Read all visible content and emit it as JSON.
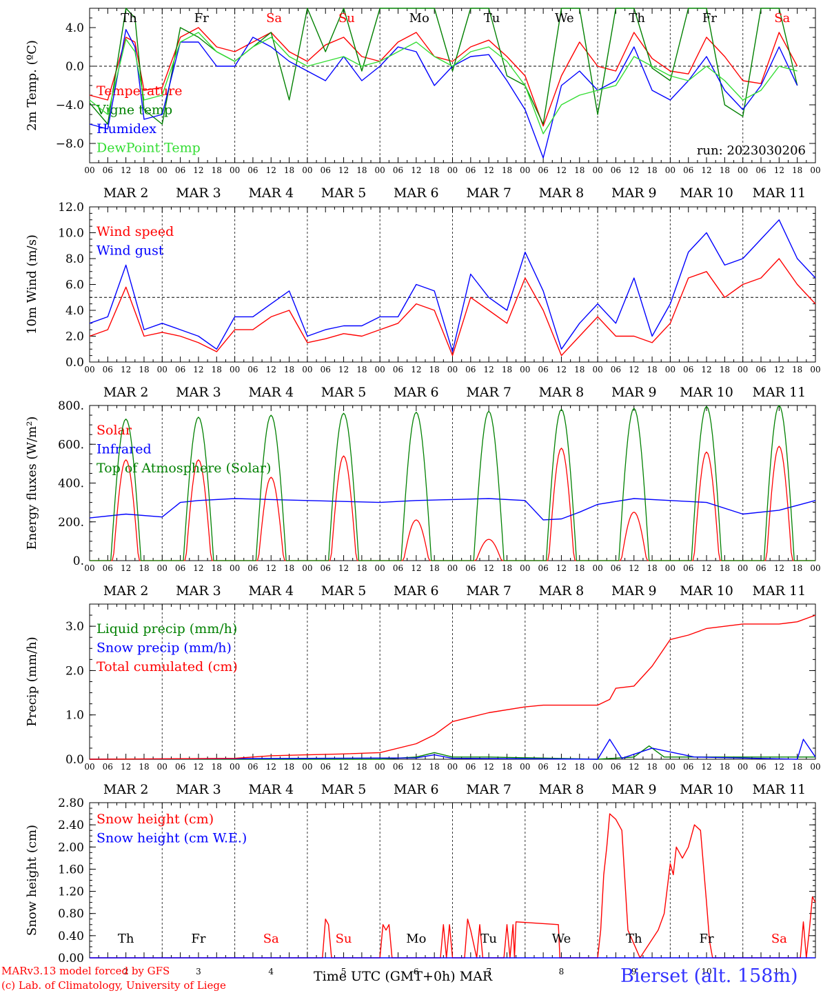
{
  "footer": {
    "model_line": "MARv3.13 model forced by GFS",
    "credit_line": "(c) Lab. of Climatology, University of Liege",
    "xaxis_title": "Time UTC (GMT+0h)",
    "xaxis_month": "MAR",
    "station": "Bierset (alt. 158m)"
  },
  "colors": {
    "red": "#ff0000",
    "blue": "#0000ff",
    "green": "#008000",
    "lightgreen": "#33dd33",
    "station": "#3333ff"
  },
  "time_axis": {
    "hour_ticks": [
      "00",
      "06",
      "12",
      "18"
    ],
    "last_tick": "00",
    "date_labels": [
      "MAR  2",
      "MAR  3",
      "MAR  4",
      "MAR  5",
      "MAR  6",
      "MAR  7",
      "MAR  8",
      "MAR  9",
      "MAR 10",
      "MAR 11"
    ],
    "day_names": [
      "Th",
      "Fr",
      "Sa",
      "Su",
      "Mo",
      "Tu",
      "We",
      "Th",
      "Fr",
      "Sa"
    ],
    "day_colors": [
      "#000000",
      "#000000",
      "#ff0000",
      "#ff0000",
      "#000000",
      "#000000",
      "#000000",
      "#000000",
      "#000000",
      "#ff0000"
    ],
    "bottom_day_numbers": [
      "2",
      "3",
      "4",
      "5",
      "6",
      "7",
      "8",
      "9",
      "10",
      "11"
    ]
  },
  "chart_data": [
    {
      "type": "line",
      "ylabel": "2m Temp. (ºC)",
      "ylim": [
        -10,
        6
      ],
      "yticks": [
        4,
        0,
        -4,
        -8
      ],
      "ytick_labels": [
        "4.0",
        "0.0",
        "−4.0",
        "−8.0"
      ],
      "reference_line": 0,
      "annotation": "run: 2023030206",
      "x_unit": "hours since MAR 2 00 UTC",
      "series": [
        {
          "name": "Temperature",
          "color": "#ff0000",
          "x": [
            0,
            6,
            12,
            15,
            18,
            24,
            30,
            36,
            42,
            48,
            54,
            60,
            66,
            72,
            78,
            84,
            90,
            96,
            102,
            108,
            114,
            120,
            126,
            132,
            138,
            144,
            150,
            156,
            162,
            168,
            174,
            180,
            186,
            192,
            198,
            204,
            210,
            216,
            222,
            228,
            234
          ],
          "y": [
            -3.0,
            -3.5,
            3.0,
            2.5,
            -2.5,
            -2.2,
            3.0,
            4.0,
            2.0,
            1.5,
            2.5,
            3.5,
            1.5,
            0.5,
            2.2,
            3.0,
            1.0,
            0.5,
            2.5,
            3.5,
            1.0,
            0.5,
            2.0,
            2.7,
            1.0,
            -1.0,
            -6.2,
            -1.0,
            2.5,
            0.0,
            -0.5,
            3.5,
            0.8,
            -0.5,
            -0.8,
            3.0,
            1.0,
            -1.5,
            -1.8,
            3.5,
            0.0
          ]
        },
        {
          "name": "Vigne temp",
          "color": "#008000",
          "x": [
            0,
            6,
            12,
            15,
            18,
            24,
            30,
            36,
            42,
            48,
            54,
            60,
            66,
            72,
            78,
            84,
            90,
            96,
            102,
            108,
            114,
            120,
            126,
            132,
            138,
            144,
            150,
            156,
            162,
            168,
            174,
            180,
            186,
            192,
            198,
            204,
            210,
            216,
            222,
            228,
            234
          ],
          "y": [
            -3.8,
            -6.0,
            6.0,
            5.0,
            -4.5,
            -6.0,
            4.0,
            3.0,
            1.5,
            0.5,
            2.0,
            3.5,
            -3.5,
            6.0,
            1.5,
            6.0,
            -0.5,
            6.0,
            6.0,
            6.0,
            6.0,
            -0.5,
            6.0,
            6.0,
            -1.0,
            -2.0,
            -6.0,
            6.0,
            6.0,
            -5.0,
            6.0,
            6.0,
            -0.2,
            -1.5,
            6.0,
            6.0,
            -4.0,
            -5.2,
            6.0,
            6.0,
            -2.0
          ]
        },
        {
          "name": "Humidex",
          "color": "#0000ff",
          "x": [
            0,
            6,
            12,
            15,
            18,
            24,
            30,
            36,
            42,
            48,
            54,
            60,
            66,
            72,
            78,
            84,
            90,
            96,
            102,
            108,
            114,
            120,
            126,
            132,
            138,
            144,
            150,
            156,
            162,
            168,
            174,
            180,
            186,
            192,
            198,
            204,
            210,
            216,
            222,
            228,
            234
          ],
          "y": [
            -6.0,
            -6.5,
            3.8,
            2.0,
            -5.5,
            -5.0,
            2.5,
            2.5,
            0.0,
            0.0,
            3.0,
            2.0,
            0.5,
            -0.5,
            -1.5,
            1.0,
            -1.5,
            0.0,
            2.0,
            1.5,
            -2.0,
            0.0,
            1.0,
            1.2,
            -1.5,
            -4.5,
            -9.5,
            -2.0,
            -0.5,
            -2.5,
            -1.5,
            2.0,
            -2.5,
            -3.5,
            -1.5,
            1.0,
            -2.5,
            -4.5,
            -2.0,
            2.0,
            -2.0
          ]
        },
        {
          "name": "DewPoint Temp",
          "color": "#33dd33",
          "x": [
            0,
            6,
            12,
            15,
            18,
            24,
            30,
            36,
            42,
            48,
            54,
            60,
            66,
            72,
            78,
            84,
            90,
            96,
            102,
            108,
            114,
            120,
            126,
            132,
            138,
            144,
            150,
            156,
            162,
            168,
            174,
            180,
            186,
            192,
            198,
            204,
            210,
            216,
            222,
            228,
            234
          ],
          "y": [
            -3.5,
            -5.0,
            2.8,
            1.5,
            -3.5,
            -3.0,
            2.5,
            3.5,
            1.5,
            0.5,
            2.0,
            3.0,
            1.0,
            0.0,
            0.5,
            1.0,
            0.0,
            0.5,
            1.5,
            2.5,
            1.0,
            0.0,
            1.5,
            2.0,
            0.5,
            -2.0,
            -7.0,
            -4.0,
            -3.0,
            -2.5,
            -2.0,
            1.0,
            0.0,
            -1.0,
            -1.5,
            0.0,
            -1.5,
            -3.5,
            -2.5,
            0.0,
            -0.5
          ]
        }
      ]
    },
    {
      "type": "line",
      "ylabel": "10m Wind (m/s)",
      "ylim": [
        0,
        12
      ],
      "yticks": [
        0,
        2,
        4,
        6,
        8,
        10,
        12
      ],
      "ytick_labels": [
        "0.0",
        "2.0",
        "4.0",
        "6.0",
        "8.0",
        "10.0",
        "12.0"
      ],
      "reference_line": 5,
      "x_unit": "hours since MAR 2 00 UTC",
      "series": [
        {
          "name": "Wind speed",
          "color": "#ff0000",
          "x": [
            0,
            6,
            12,
            18,
            24,
            30,
            36,
            42,
            48,
            54,
            60,
            66,
            72,
            78,
            84,
            90,
            96,
            102,
            108,
            114,
            120,
            126,
            132,
            138,
            144,
            150,
            156,
            162,
            168,
            174,
            180,
            186,
            192,
            198,
            204,
            210,
            216,
            222,
            228,
            234,
            240
          ],
          "y": [
            2.0,
            2.5,
            5.8,
            2.0,
            2.3,
            2.0,
            1.5,
            0.8,
            2.5,
            2.5,
            3.5,
            4.0,
            1.5,
            1.8,
            2.2,
            2.0,
            2.5,
            3.0,
            4.5,
            4.0,
            0.5,
            5.0,
            4.0,
            3.0,
            6.5,
            4.0,
            0.5,
            2.0,
            3.5,
            2.0,
            2.0,
            1.5,
            3.0,
            6.5,
            7.0,
            5.0,
            6.0,
            6.5,
            8.0,
            6.0,
            4.5
          ]
        },
        {
          "name": "Wind gust",
          "color": "#0000ff",
          "x": [
            0,
            6,
            12,
            18,
            24,
            30,
            36,
            42,
            48,
            54,
            60,
            66,
            72,
            78,
            84,
            90,
            96,
            102,
            108,
            114,
            120,
            126,
            132,
            138,
            144,
            150,
            156,
            162,
            168,
            174,
            180,
            186,
            192,
            198,
            204,
            210,
            216,
            222,
            228,
            234,
            240
          ],
          "y": [
            3.0,
            3.5,
            7.5,
            2.5,
            3.0,
            2.5,
            2.0,
            1.0,
            3.5,
            3.5,
            4.5,
            5.5,
            2.0,
            2.5,
            2.8,
            2.8,
            3.5,
            3.5,
            6.0,
            5.5,
            0.8,
            6.8,
            5.0,
            4.0,
            8.5,
            5.5,
            1.0,
            3.0,
            4.5,
            3.0,
            6.5,
            2.0,
            4.5,
            8.5,
            10.0,
            7.5,
            8.0,
            9.5,
            11.0,
            8.0,
            6.5
          ]
        }
      ]
    },
    {
      "type": "line",
      "ylabel": "Energy fluxes (W/m²)",
      "ylim": [
        0,
        800
      ],
      "yticks": [
        0,
        200,
        400,
        600,
        800
      ],
      "ytick_labels": [
        "0.",
        "200.",
        "400.",
        "600.",
        "800."
      ],
      "x_unit": "hours since MAR 2 00 UTC",
      "series": [
        {
          "name": "Solar",
          "color": "#ff0000",
          "peaks_x": [
            12,
            36,
            60,
            84,
            108,
            132,
            156,
            180,
            204,
            228
          ],
          "peaks_y": [
            520,
            520,
            430,
            540,
            210,
            110,
            580,
            250,
            560,
            590
          ]
        },
        {
          "name": "Infrared",
          "color": "#0000ff",
          "x": [
            0,
            12,
            24,
            30,
            36,
            48,
            60,
            72,
            84,
            96,
            108,
            120,
            132,
            144,
            150,
            156,
            162,
            168,
            180,
            192,
            204,
            216,
            228,
            240
          ],
          "y": [
            220,
            240,
            225,
            300,
            310,
            320,
            315,
            310,
            305,
            300,
            310,
            315,
            320,
            310,
            210,
            215,
            250,
            290,
            320,
            310,
            300,
            240,
            260,
            310
          ]
        },
        {
          "name": "Top of Atmosphere (Solar)",
          "color": "#008000",
          "peaks_x": [
            12,
            36,
            60,
            84,
            108,
            132,
            156,
            180,
            204,
            228
          ],
          "peaks_y": [
            730,
            740,
            750,
            760,
            765,
            770,
            780,
            785,
            795,
            800
          ]
        }
      ]
    },
    {
      "type": "line",
      "ylabel": "Precip (mm/h)",
      "ylim": [
        0,
        3.5
      ],
      "yticks": [
        0,
        1,
        2,
        3
      ],
      "ytick_labels": [
        "0.0",
        "1.0",
        "2.0",
        "3.0"
      ],
      "x_unit": "hours since MAR 2 00 UTC",
      "series": [
        {
          "name": "Liquid precip (mm/h)",
          "color": "#008000",
          "x": [
            0,
            96,
            108,
            114,
            120,
            132,
            168,
            180,
            185,
            190,
            200,
            240
          ],
          "y": [
            0,
            0,
            0.05,
            0.15,
            0.05,
            0.05,
            0,
            0.05,
            0.3,
            0.05,
            0.05,
            0.05
          ]
        },
        {
          "name": "Snow precip (mm/h)",
          "color": "#0000ff",
          "x": [
            0,
            108,
            114,
            120,
            168,
            172,
            176,
            186,
            200,
            234,
            236,
            240
          ],
          "y": [
            0,
            0.03,
            0.1,
            0.02,
            0,
            0.45,
            0.02,
            0.25,
            0.05,
            0.0,
            0.45,
            0.05
          ]
        },
        {
          "name": "Total cumulated (cm)",
          "color": "#ff0000",
          "x": [
            0,
            24,
            48,
            60,
            72,
            84,
            96,
            108,
            114,
            120,
            126,
            132,
            144,
            150,
            168,
            172,
            174,
            180,
            186,
            192,
            198,
            204,
            216,
            228,
            234,
            240
          ],
          "y": [
            0,
            0.01,
            0.02,
            0.08,
            0.1,
            0.12,
            0.15,
            0.35,
            0.55,
            0.85,
            0.95,
            1.05,
            1.18,
            1.22,
            1.22,
            1.35,
            1.6,
            1.65,
            2.1,
            2.7,
            2.8,
            2.95,
            3.05,
            3.05,
            3.1,
            3.25
          ]
        }
      ]
    },
    {
      "type": "line",
      "ylabel": "Snow height (cm)",
      "ylim": [
        0,
        2.8
      ],
      "yticks": [
        0,
        0.4,
        0.8,
        1.2,
        1.6,
        2.0,
        2.4,
        2.8
      ],
      "ytick_labels": [
        "0.00",
        "0.40",
        "0.80",
        "1.20",
        "1.60",
        "2.00",
        "2.40",
        "2.80"
      ],
      "x_unit": "hours since MAR 2 00 UTC",
      "series": [
        {
          "name": "Snow height (cm)",
          "color": "#ff0000",
          "x": [
            0,
            77,
            78,
            79,
            80,
            96,
            97,
            98,
            99,
            100,
            116,
            117,
            118,
            119,
            120,
            124,
            125,
            126,
            128,
            129,
            130,
            132,
            137,
            138,
            139,
            140,
            140.5,
            141,
            155,
            155.5,
            168,
            169,
            170,
            171,
            172,
            174,
            176,
            178,
            182,
            188,
            190,
            192,
            193,
            194,
            196,
            198,
            200,
            202,
            204,
            205,
            206,
            207,
            235,
            236,
            237,
            238,
            239,
            240
          ],
          "y": [
            0,
            0,
            0.7,
            0.6,
            0,
            0,
            0.6,
            0.5,
            0.6,
            0,
            0,
            0.6,
            0,
            0.6,
            0,
            0,
            0.7,
            0.5,
            0,
            0.6,
            0,
            0,
            0,
            0.6,
            0,
            0.6,
            0,
            0.65,
            0.6,
            0,
            0,
            0.5,
            1.5,
            2.0,
            2.6,
            2.5,
            2.3,
            0.5,
            0,
            0.5,
            0.8,
            1.7,
            1.5,
            2.0,
            1.8,
            2.0,
            2.4,
            2.3,
            1.0,
            0.3,
            0,
            0,
            0,
            0.65,
            0,
            0.5,
            1.1,
            1.0
          ]
        },
        {
          "name": "Snow height (cm W.E.)",
          "color": "#0000ff",
          "x": [
            0,
            240
          ],
          "y": [
            0,
            0
          ]
        }
      ]
    }
  ]
}
